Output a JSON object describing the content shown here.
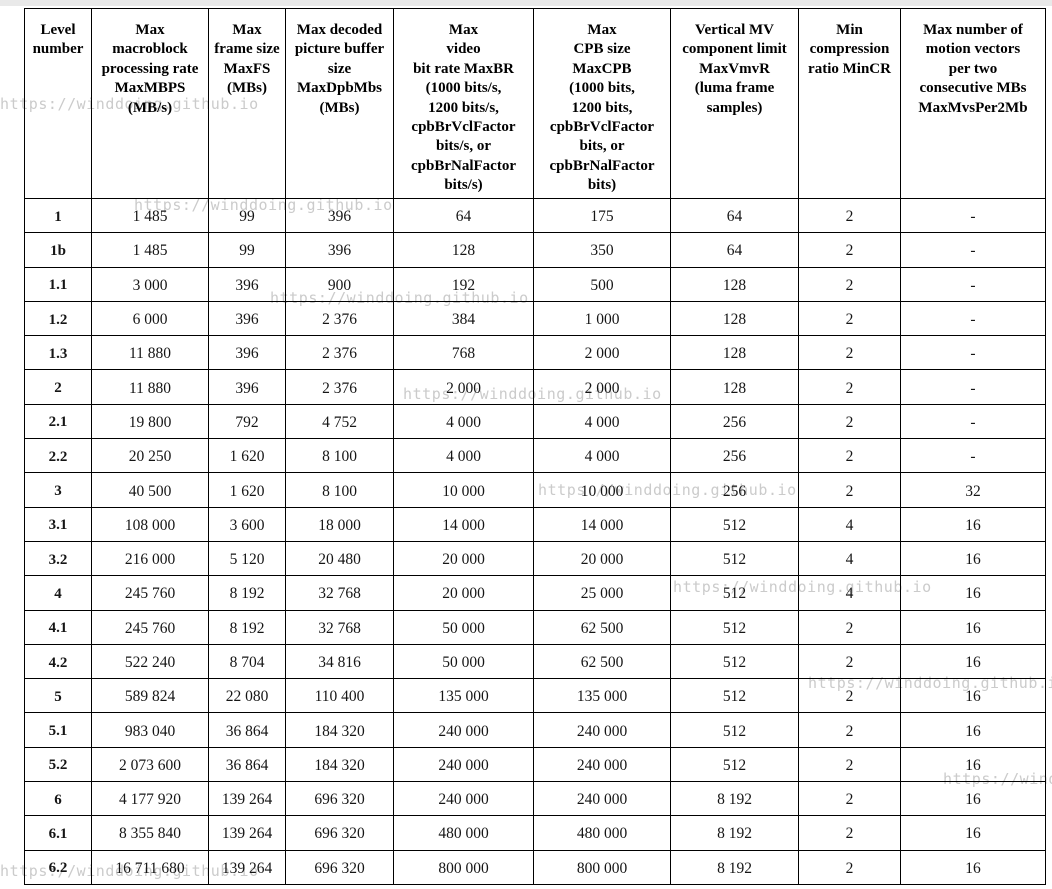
{
  "watermark": {
    "text": "https://winddoing.github.io",
    "color": "#cbcbcb"
  },
  "page": {
    "background": "#ffffff",
    "top_strip_color": "#e9e9e9"
  },
  "table": {
    "border_color": "#000000",
    "header_color": "#000000",
    "text_color": "#151515",
    "columns": [
      {
        "label": "Level\nnumber"
      },
      {
        "label": "Max\nmacroblock\nprocessing rate\nMaxMBPS\n(MB/s)"
      },
      {
        "label": "Max\nframe size\nMaxFS\n(MBs)"
      },
      {
        "label": "Max decoded\npicture buffer\nsize\nMaxDpbMbs\n(MBs)"
      },
      {
        "label": "Max\nvideo\nbit rate MaxBR\n(1000 bits/s,\n1200 bits/s,\ncpbBrVclFactor\nbits/s, or\ncpbBrNalFactor\nbits/s)"
      },
      {
        "label": "Max\nCPB size\nMaxCPB\n(1000 bits,\n1200 bits,\ncpbBrVclFactor\nbits, or\ncpbBrNalFactor\nbits)"
      },
      {
        "label": "Vertical MV\ncomponent limit\nMaxVmvR\n(luma frame\nsamples)"
      },
      {
        "label": "Min\ncompression\nratio MinCR"
      },
      {
        "label": "Max number of\nmotion vectors\nper two\nconsecutive MBs\nMaxMvsPer2Mb"
      }
    ],
    "rows": [
      [
        "1",
        "1 485",
        "99",
        "396",
        "64",
        "175",
        "64",
        "2",
        "-"
      ],
      [
        "1b",
        "1 485",
        "99",
        "396",
        "128",
        "350",
        "64",
        "2",
        "-"
      ],
      [
        "1.1",
        "3 000",
        "396",
        "900",
        "192",
        "500",
        "128",
        "2",
        "-"
      ],
      [
        "1.2",
        "6 000",
        "396",
        "2 376",
        "384",
        "1 000",
        "128",
        "2",
        "-"
      ],
      [
        "1.3",
        "11 880",
        "396",
        "2 376",
        "768",
        "2 000",
        "128",
        "2",
        "-"
      ],
      [
        "2",
        "11 880",
        "396",
        "2 376",
        "2 000",
        "2 000",
        "128",
        "2",
        "-"
      ],
      [
        "2.1",
        "19 800",
        "792",
        "4 752",
        "4 000",
        "4 000",
        "256",
        "2",
        "-"
      ],
      [
        "2.2",
        "20 250",
        "1 620",
        "8 100",
        "4 000",
        "4 000",
        "256",
        "2",
        "-"
      ],
      [
        "3",
        "40 500",
        "1 620",
        "8 100",
        "10 000",
        "10 000",
        "256",
        "2",
        "32"
      ],
      [
        "3.1",
        "108 000",
        "3 600",
        "18 000",
        "14 000",
        "14 000",
        "512",
        "4",
        "16"
      ],
      [
        "3.2",
        "216 000",
        "5 120",
        "20 480",
        "20 000",
        "20 000",
        "512",
        "4",
        "16"
      ],
      [
        "4",
        "245 760",
        "8 192",
        "32 768",
        "20 000",
        "25 000",
        "512",
        "4",
        "16"
      ],
      [
        "4.1",
        "245 760",
        "8 192",
        "32 768",
        "50 000",
        "62 500",
        "512",
        "2",
        "16"
      ],
      [
        "4.2",
        "522 240",
        "8 704",
        "34 816",
        "50 000",
        "62 500",
        "512",
        "2",
        "16"
      ],
      [
        "5",
        "589 824",
        "22 080",
        "110 400",
        "135 000",
        "135 000",
        "512",
        "2",
        "16"
      ],
      [
        "5.1",
        "983 040",
        "36 864",
        "184 320",
        "240 000",
        "240 000",
        "512",
        "2",
        "16"
      ],
      [
        "5.2",
        "2 073 600",
        "36 864",
        "184 320",
        "240 000",
        "240 000",
        "512",
        "2",
        "16"
      ],
      [
        "6",
        "4 177 920",
        "139 264",
        "696 320",
        "240 000",
        "240 000",
        "8 192",
        "2",
        "16"
      ],
      [
        "6.1",
        "8 355 840",
        "139 264",
        "696 320",
        "480 000",
        "480 000",
        "8 192",
        "2",
        "16"
      ],
      [
        "6.2",
        "16 711 680",
        "139 264",
        "696 320",
        "800 000",
        "800 000",
        "8 192",
        "2",
        "16"
      ]
    ]
  }
}
